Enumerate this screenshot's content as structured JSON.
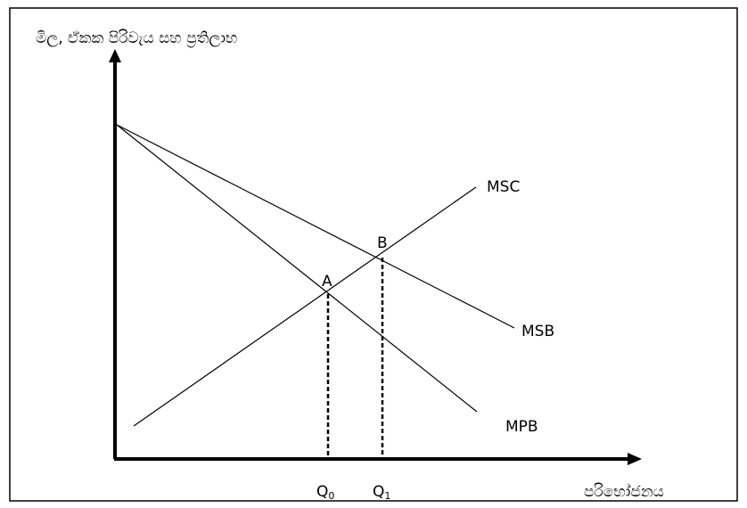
{
  "y_axis_label": "මිල, ඒකක පිරිවැය සහ ප්‍රතිලාභ",
  "x_axis_label": "පරිභෝජනය",
  "curves": {
    "msc": "MSC",
    "msb": "MSB",
    "mpb": "MPB"
  },
  "points": {
    "a": "A",
    "b": "B"
  },
  "quantities": {
    "q0_main": "Q",
    "q0_sub": "0",
    "q1_main": "Q",
    "q1_sub": "1"
  }
}
